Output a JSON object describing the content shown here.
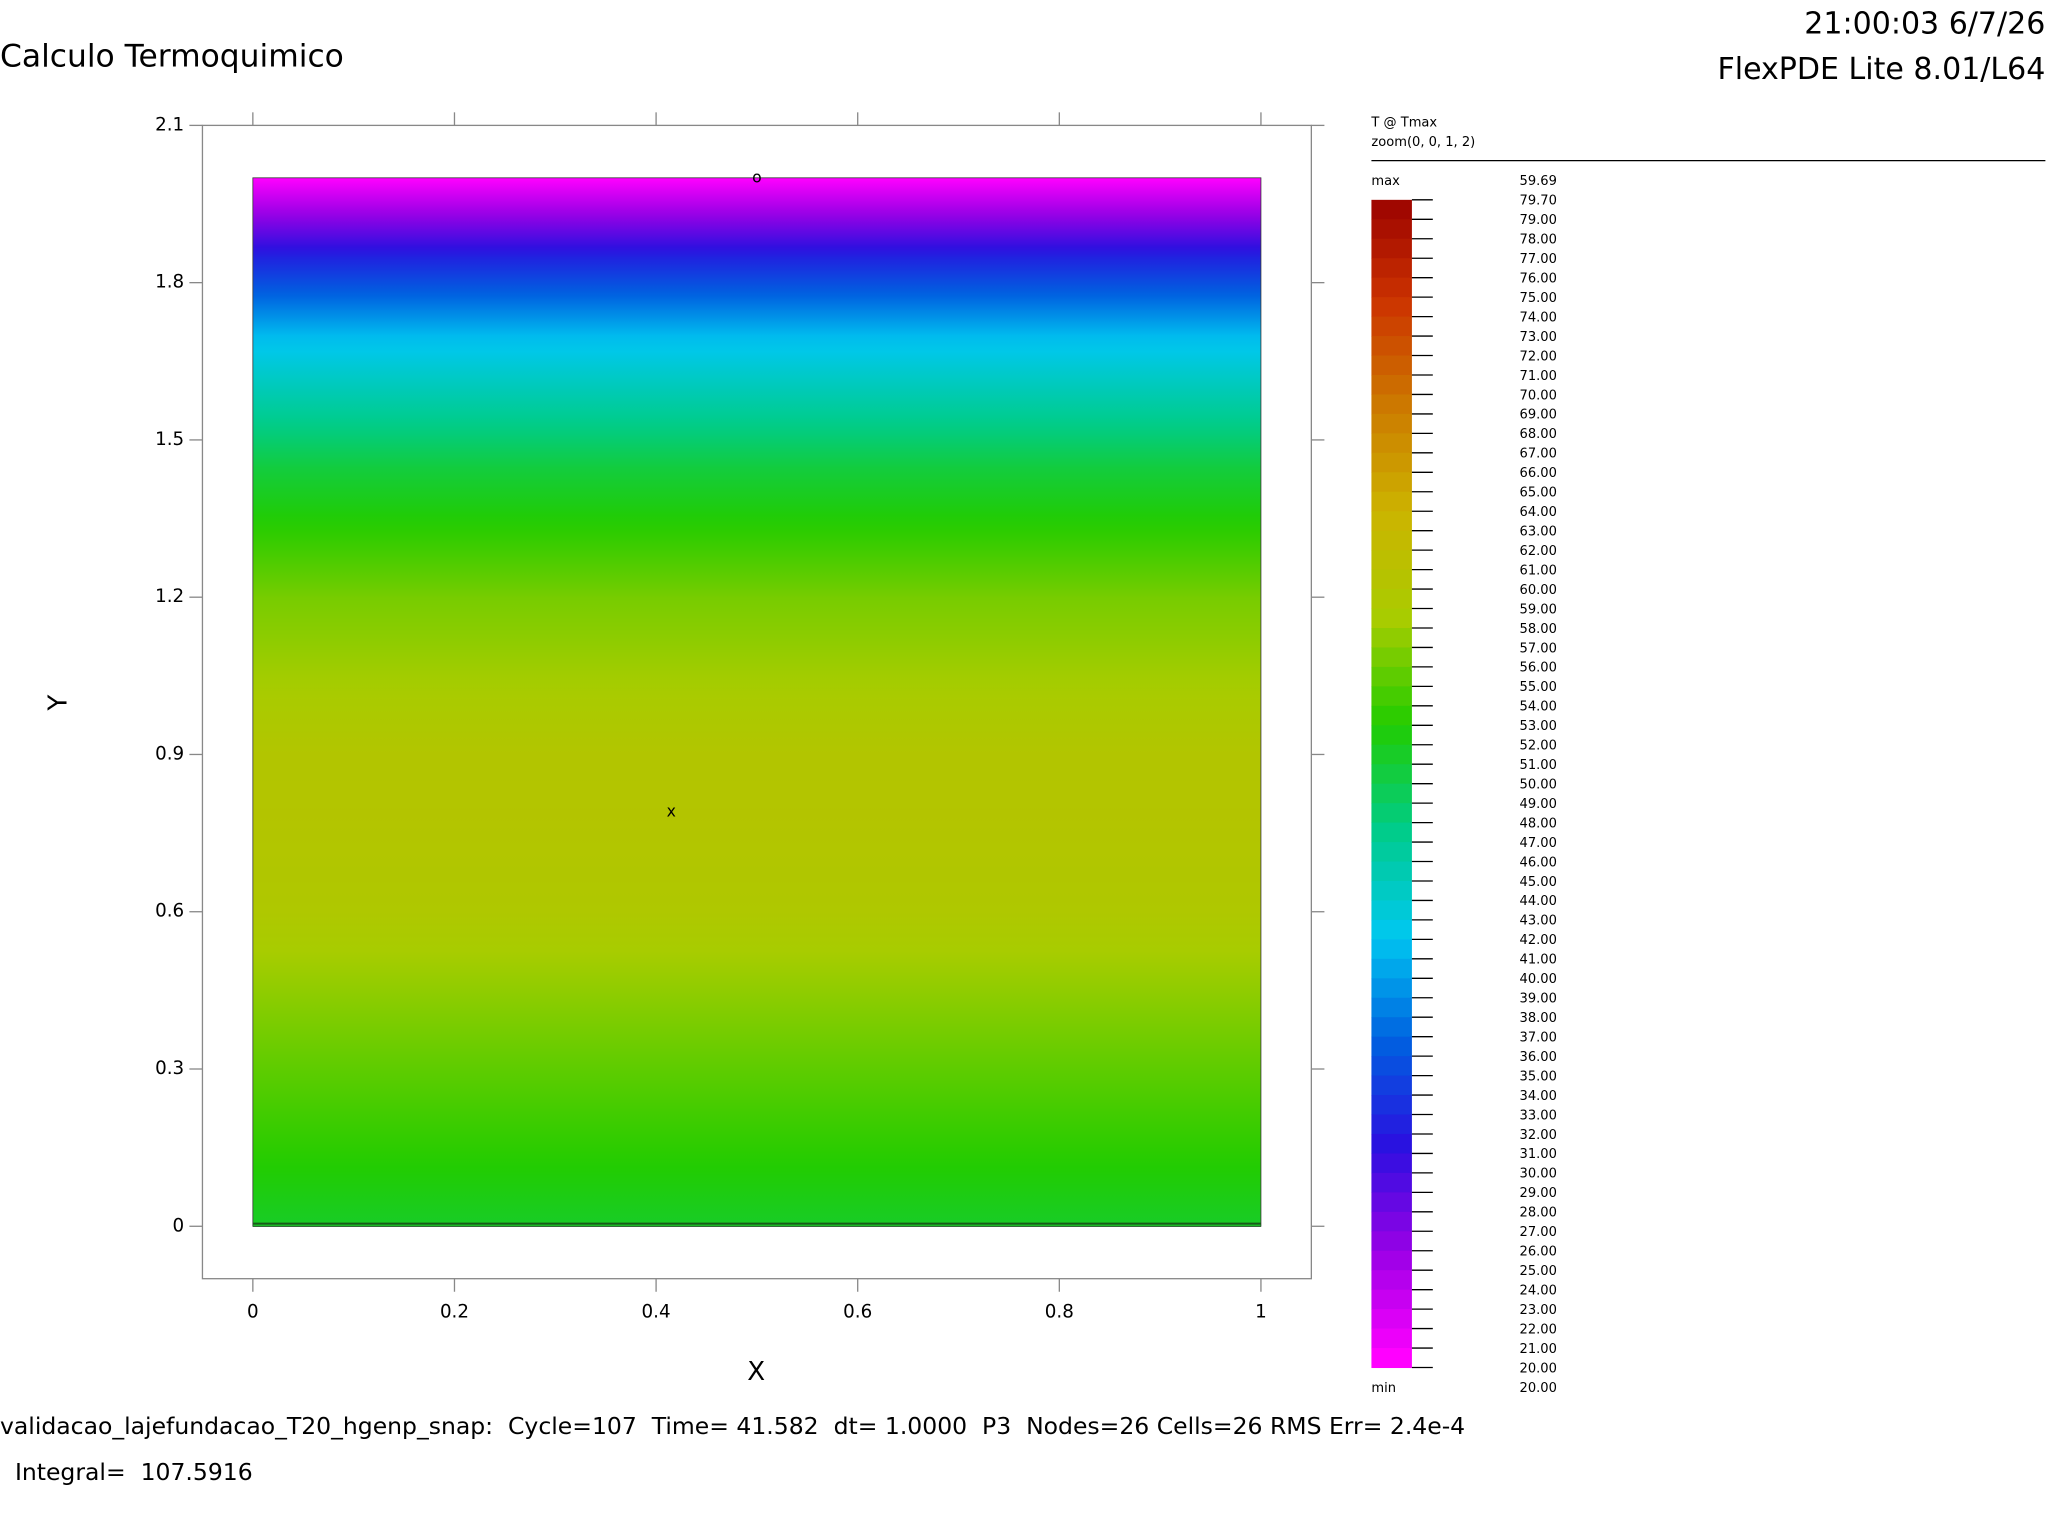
{
  "chart_data": {
    "type": "contour",
    "title": "Calculo Termoquimico",
    "timestamp": "21:00:03 6/7/26",
    "software": "FlexPDE Lite 8.01/L64",
    "plot_label": "T @ Tmax",
    "zoom_label": "zoom(0, 0, 1, 2)",
    "x_label": "X",
    "y_label": "Y",
    "xlim": [
      -0.05,
      1.05
    ],
    "ylim": [
      -0.1,
      2.1
    ],
    "xticks": [
      0,
      0.2,
      0.4,
      0.6,
      0.8,
      1
    ],
    "yticks": [
      0,
      0.3,
      0.6,
      0.9,
      1.2,
      1.5,
      1.8,
      2.1
    ],
    "profile": {
      "y": [
        2.0,
        1.85,
        1.7,
        1.45,
        1.2,
        0.9,
        0.79,
        0.6,
        0.3,
        0.0
      ],
      "values": [
        20,
        32,
        41,
        50,
        56,
        59.5,
        59.69,
        59,
        55,
        51
      ]
    },
    "markers": [
      {
        "label": "o",
        "x": 0.5,
        "y": 2.0
      },
      {
        "label": "x",
        "x": 0.415,
        "y": 0.79
      }
    ],
    "max_text": "max",
    "max_value": 59.69,
    "min_text": "min",
    "min_value": {
      "value": 20,
      "label": "20.00"
    },
    "colormap": [
      "#ff00ff",
      "#9a00e6",
      "#2a10e0",
      "#0060e0",
      "#00c8f0",
      "#00cc88",
      "#22cc00",
      "#a8cc00",
      "#ccb400",
      "#cc7a00",
      "#cc3300",
      "#990000"
    ],
    "levels": [
      {
        "value": 79.7,
        "label": "79.70"
      },
      {
        "value": 79,
        "label": "79.00"
      },
      {
        "value": 78,
        "label": "78.00"
      },
      {
        "value": 77,
        "label": "77.00"
      },
      {
        "value": 76,
        "label": "76.00"
      },
      {
        "value": 75,
        "label": "75.00"
      },
      {
        "value": 74,
        "label": "74.00"
      },
      {
        "value": 73,
        "label": "73.00"
      },
      {
        "value": 72,
        "label": "72.00"
      },
      {
        "value": 71,
        "label": "71.00"
      },
      {
        "value": 70,
        "label": "70.00"
      },
      {
        "value": 69,
        "label": "69.00"
      },
      {
        "value": 68,
        "label": "68.00"
      },
      {
        "value": 67,
        "label": "67.00"
      },
      {
        "value": 66,
        "label": "66.00"
      },
      {
        "value": 65,
        "label": "65.00"
      },
      {
        "value": 64,
        "label": "64.00"
      },
      {
        "value": 63,
        "label": "63.00"
      },
      {
        "value": 62,
        "label": "62.00"
      },
      {
        "value": 61,
        "label": "61.00"
      },
      {
        "value": 60,
        "label": "60.00"
      },
      {
        "value": 59,
        "label": "59.00"
      },
      {
        "value": 58,
        "label": "58.00"
      },
      {
        "value": 57,
        "label": "57.00"
      },
      {
        "value": 56,
        "label": "56.00"
      },
      {
        "value": 55,
        "label": "55.00"
      },
      {
        "value": 54,
        "label": "54.00"
      },
      {
        "value": 53,
        "label": "53.00"
      },
      {
        "value": 52,
        "label": "52.00"
      },
      {
        "value": 51,
        "label": "51.00"
      },
      {
        "value": 50,
        "label": "50.00"
      },
      {
        "value": 49,
        "label": "49.00"
      },
      {
        "value": 48,
        "label": "48.00"
      },
      {
        "value": 47,
        "label": "47.00"
      },
      {
        "value": 46,
        "label": "46.00"
      },
      {
        "value": 45,
        "label": "45.00"
      },
      {
        "value": 44,
        "label": "44.00"
      },
      {
        "value": 43,
        "label": "43.00"
      },
      {
        "value": 42,
        "label": "42.00"
      },
      {
        "value": 41,
        "label": "41.00"
      },
      {
        "value": 40,
        "label": "40.00"
      },
      {
        "value": 39,
        "label": "39.00"
      },
      {
        "value": 38,
        "label": "38.00"
      },
      {
        "value": 37,
        "label": "37.00"
      },
      {
        "value": 36,
        "label": "36.00"
      },
      {
        "value": 35,
        "label": "35.00"
      },
      {
        "value": 34,
        "label": "34.00"
      },
      {
        "value": 33,
        "label": "33.00"
      },
      {
        "value": 32,
        "label": "32.00"
      },
      {
        "value": 31,
        "label": "31.00"
      },
      {
        "value": 30,
        "label": "30.00"
      },
      {
        "value": 29,
        "label": "29.00"
      },
      {
        "value": 28,
        "label": "28.00"
      },
      {
        "value": 27,
        "label": "27.00"
      },
      {
        "value": 26,
        "label": "26.00"
      },
      {
        "value": 25,
        "label": "25.00"
      },
      {
        "value": 24,
        "label": "24.00"
      },
      {
        "value": 23,
        "label": "23.00"
      },
      {
        "value": 22,
        "label": "22.00"
      },
      {
        "value": 21,
        "label": "21.00"
      },
      {
        "value": 20,
        "label": "20.00"
      }
    ],
    "status_line": "validacao_lajefundacao_T20_hgenp_snap:  Cycle=107  Time= 41.582  dt= 1.0000  P3  Nodes=26 Cells=26 RMS Err= 2.4e-4",
    "integral_line": "  Integral=  107.5916"
  }
}
